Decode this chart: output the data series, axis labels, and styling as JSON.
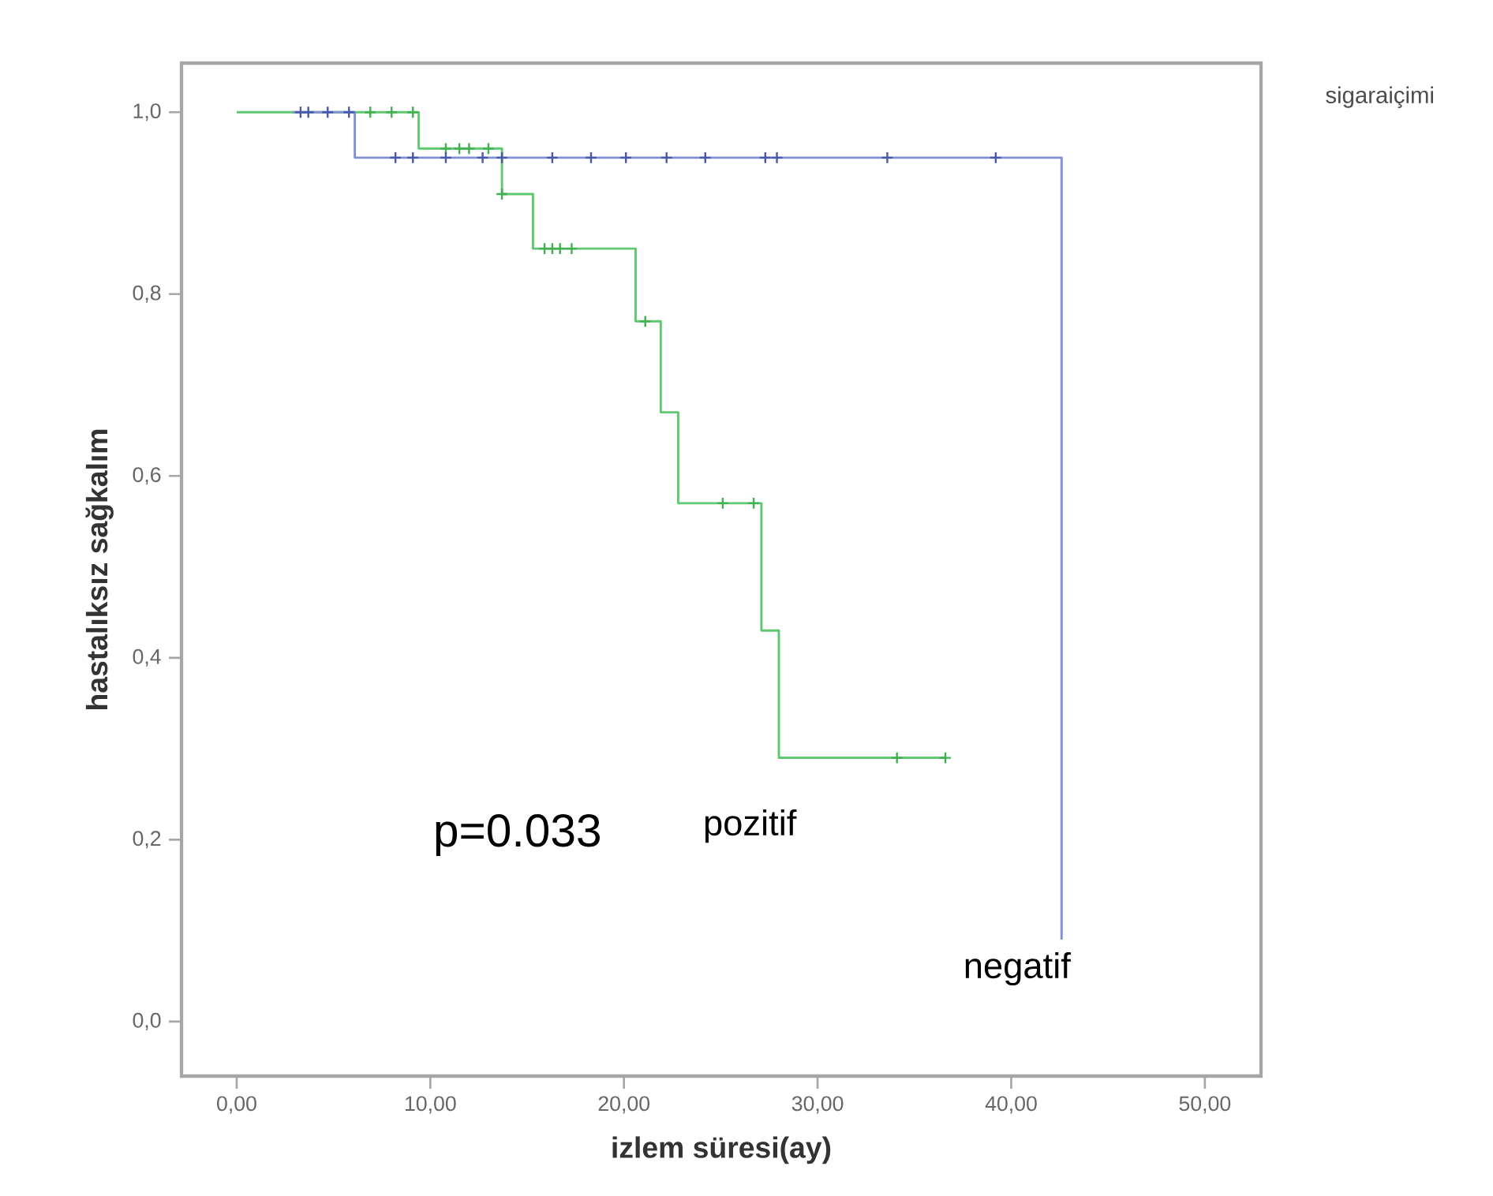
{
  "chart_data": {
    "type": "step",
    "xlabel": "izlem süresi(ay)",
    "ylabel": "hastalıksız sağkalım",
    "legend_title": "sigaraiçimi",
    "annotations": [
      "p=0.033"
    ],
    "xlim": [
      -2.85,
      52.9
    ],
    "ylim": [
      -0.06,
      1.054
    ],
    "xticks": [
      {
        "value": 0,
        "label": "0,00"
      },
      {
        "value": 10,
        "label": "10,00"
      },
      {
        "value": 20,
        "label": "20,00"
      },
      {
        "value": 30,
        "label": "30,00"
      },
      {
        "value": 40,
        "label": "40,00"
      },
      {
        "value": 50,
        "label": "50,00"
      }
    ],
    "yticks": [
      {
        "value": 0,
        "label": "0,0"
      },
      {
        "value": 0.2,
        "label": "0,2"
      },
      {
        "value": 0.4,
        "label": "0,4"
      },
      {
        "value": 0.6,
        "label": "0,6"
      },
      {
        "value": 0.8,
        "label": "0,8"
      },
      {
        "value": 1.0,
        "label": "1,0"
      }
    ],
    "series": [
      {
        "name": "pozitif",
        "color": "#60c870",
        "x": [
          0,
          9.4,
          13.7,
          15.3,
          20.6,
          21.9,
          22.8,
          27.1,
          28.0,
          36.6
        ],
        "values": [
          1,
          0.96,
          0.91,
          0.85,
          0.77,
          0.67,
          0.57,
          0.43,
          0.29,
          0.29
        ]
      },
      {
        "name": "negatif",
        "color": "#8090d0",
        "x": [
          2.9,
          6.1,
          42.6
        ],
        "values": [
          1,
          0.95,
          0.09
        ]
      },
      {
        "type": "scatter",
        "marker": "cross",
        "color": "#40b050",
        "x": [
          6.9,
          8.0,
          9.1,
          10.8,
          11.5,
          12.0,
          13.0,
          13.7,
          15.9,
          16.3,
          16.7,
          17.3,
          21.1,
          25.1,
          26.7,
          34.1,
          36.6
        ],
        "values": [
          1,
          1,
          1,
          0.96,
          0.96,
          0.96,
          0.96,
          0.91,
          0.85,
          0.85,
          0.85,
          0.85,
          0.77,
          0.57,
          0.57,
          0.29,
          0.29
        ]
      },
      {
        "type": "scatter",
        "marker": "cross",
        "color": "#4858b0",
        "x": [
          3.3,
          3.7,
          4.7,
          5.8,
          8.2,
          9.1,
          10.8,
          12.7,
          13.7,
          16.3,
          18.3,
          20.1,
          22.2,
          24.2,
          27.3,
          27.9,
          33.6,
          39.2
        ],
        "values": [
          1,
          1,
          1,
          1,
          0.95,
          0.95,
          0.95,
          0.95,
          0.95,
          0.95,
          0.95,
          0.95,
          0.95,
          0.95,
          0.95,
          0.95,
          0.95,
          0.95
        ]
      }
    ]
  }
}
